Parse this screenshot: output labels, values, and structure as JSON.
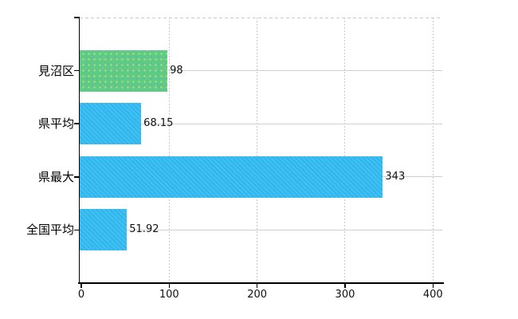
{
  "chart_data": {
    "type": "bar",
    "orientation": "horizontal",
    "title": "",
    "categories": [
      "見沼区",
      "県平均",
      "県最大",
      "全国平均"
    ],
    "values": [
      98,
      68.15,
      343,
      51.92
    ],
    "data_labels": [
      "98",
      "68.15",
      "343",
      "51.92"
    ],
    "bar_colors": [
      "#5ecb85",
      "#33bcf2",
      "#33bcf2",
      "#33bcf2"
    ],
    "x_tick_values": [
      0,
      100,
      200,
      300,
      400
    ],
    "x_tick_labels": [
      "0",
      "100",
      "200",
      "300",
      "400"
    ],
    "xlim": [
      0,
      411
    ],
    "grid": {
      "vertical_lines": "dashed",
      "top_boundary_line": "dashed",
      "row_lines": "solid",
      "legend": "none"
    },
    "colors": {
      "bar_green": "#5ecb85",
      "bar_blue": "#33bcf2",
      "grid_dashed": "#cbcbcb",
      "grid_row": "#ccd3cc",
      "axis": "#000000",
      "text": "#000000",
      "background": "#ffffff"
    }
  }
}
